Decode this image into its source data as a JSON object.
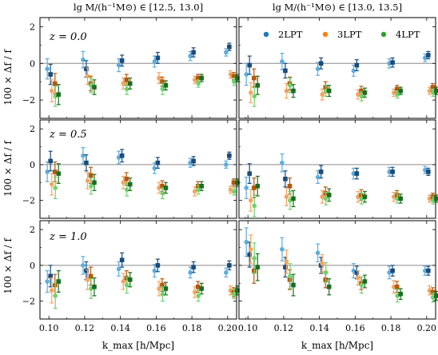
{
  "chart_data": {
    "type": "scatter",
    "layout": "3 rows x 2 columns of error-bar panels, shared x and y axes",
    "column_titles": [
      "lg M/(h⁻¹M⊙) ∈ [12.5, 13.0]",
      "lg M/(h⁻¹M⊙) ∈ [13.0, 13.5]"
    ],
    "row_labels": [
      "z = 0.0",
      "z = 0.5",
      "z = 1.0"
    ],
    "xlabel": "k_max [h/Mpc]",
    "ylabel": "100 × Δf / f",
    "xlim": [
      0.095,
      0.205
    ],
    "ylim": [
      -3,
      2.5
    ],
    "xticks": [
      "0.10",
      "0.12",
      "0.14",
      "0.16",
      "0.18",
      "0.20"
    ],
    "yticks": [
      "−2",
      "0",
      "2"
    ],
    "reference_line_y": 0,
    "grid": false,
    "legend": {
      "entries": [
        "2LPT",
        "3LPT",
        "4LPT"
      ],
      "location": "top-right of upper-right panel"
    },
    "x": [
      0.1,
      0.12,
      0.14,
      0.16,
      0.18,
      0.2
    ],
    "colors": {
      "2LPT": {
        "light": "#5aaee0",
        "dark": "#1b4b7a"
      },
      "3LPT": {
        "light": "#f5a55c",
        "dark": "#b35a0c"
      },
      "4LPT": {
        "light": "#6dd46d",
        "dark": "#1e6b24"
      }
    },
    "panels": [
      {
        "row": 0,
        "col": 0,
        "series": [
          {
            "name": "2LPT",
            "light": {
              "y": [
                -0.3,
                0.2,
                -0.1,
                0.1,
                0.4,
                0.6
              ],
              "err": [
                0.55,
                0.45,
                0.35,
                0.3,
                0.25,
                0.2
              ]
            },
            "dark": {
              "y": [
                -0.6,
                -0.3,
                0.15,
                0.3,
                0.6,
                0.9
              ],
              "err": [
                0.55,
                0.45,
                0.3,
                0.3,
                0.25,
                0.2
              ]
            }
          },
          {
            "name": "3LPT",
            "light": {
              "y": [
                -1.5,
                -0.7,
                -1.1,
                -0.8,
                -0.9,
                -0.6
              ],
              "err": [
                0.6,
                0.45,
                0.3,
                0.3,
                0.2,
                0.2
              ]
            },
            "dark": {
              "y": [
                -1.1,
                -1.1,
                -0.9,
                -1.0,
                -0.8,
                -0.7
              ],
              "err": [
                0.55,
                0.4,
                0.3,
                0.25,
                0.2,
                0.2
              ]
            }
          },
          {
            "name": "4LPT",
            "light": {
              "y": [
                -1.8,
                -1.2,
                -1.4,
                -1.4,
                -1.1,
                -1.0
              ],
              "err": [
                0.55,
                0.4,
                0.3,
                0.3,
                0.2,
                0.2
              ]
            },
            "dark": {
              "y": [
                -1.7,
                -1.3,
                -1.1,
                -1.2,
                -0.8,
                -0.8
              ],
              "err": [
                0.55,
                0.4,
                0.3,
                0.25,
                0.2,
                0.2
              ]
            }
          }
        ]
      },
      {
        "row": 0,
        "col": 1,
        "series": [
          {
            "name": "2LPT",
            "light": {
              "y": [
                -0.6,
                0.1,
                -0.3,
                -0.4,
                0.0,
                0.3
              ],
              "err": [
                0.6,
                0.45,
                0.35,
                0.3,
                0.25,
                0.2
              ]
            },
            "dark": {
              "y": [
                -0.1,
                -0.4,
                0.0,
                -0.1,
                0.05,
                0.45
              ],
              "err": [
                0.5,
                0.4,
                0.3,
                0.3,
                0.25,
                0.2
              ]
            }
          },
          {
            "name": "3LPT",
            "light": {
              "y": [
                -1.6,
                -1.5,
                -1.7,
                -1.7,
                -1.6,
                -1.5
              ],
              "err": [
                0.55,
                0.4,
                0.3,
                0.25,
                0.2,
                0.2
              ]
            },
            "dark": {
              "y": [
                -0.8,
                -1.1,
                -1.3,
                -1.5,
                -1.4,
                -1.3
              ],
              "err": [
                0.5,
                0.35,
                0.3,
                0.25,
                0.2,
                0.2
              ]
            }
          },
          {
            "name": "4LPT",
            "light": {
              "y": [
                -1.8,
                -1.2,
                -1.5,
                -1.8,
                -1.7,
                -1.6
              ],
              "err": [
                0.55,
                0.4,
                0.3,
                0.25,
                0.2,
                0.2
              ]
            },
            "dark": {
              "y": [
                -1.2,
                -1.5,
                -1.5,
                -1.6,
                -1.5,
                -1.5
              ],
              "err": [
                0.5,
                0.35,
                0.3,
                0.25,
                0.2,
                0.2
              ]
            }
          }
        ]
      },
      {
        "row": 1,
        "col": 0,
        "series": [
          {
            "name": "2LPT",
            "light": {
              "y": [
                -0.4,
                0.5,
                0.4,
                -0.2,
                0.1,
                0.0
              ],
              "err": [
                0.55,
                0.45,
                0.35,
                0.3,
                0.25,
                0.2
              ]
            },
            "dark": {
              "y": [
                0.2,
                0.1,
                0.5,
                0.1,
                0.2,
                0.5
              ],
              "err": [
                0.55,
                0.45,
                0.35,
                0.3,
                0.25,
                0.2
              ]
            }
          },
          {
            "name": "3LPT",
            "light": {
              "y": [
                -1.1,
                -0.9,
                -1.0,
                -1.3,
                -1.5,
                -1.4
              ],
              "err": [
                0.6,
                0.45,
                0.35,
                0.3,
                0.25,
                0.2
              ]
            },
            "dark": {
              "y": [
                -0.4,
                -0.6,
                -0.8,
                -1.2,
                -1.2,
                -1.0
              ],
              "err": [
                0.55,
                0.45,
                0.35,
                0.3,
                0.25,
                0.2
              ]
            }
          },
          {
            "name": "4LPT",
            "light": {
              "y": [
                -1.3,
                -1.2,
                -1.4,
                -1.6,
                -1.4,
                -1.5
              ],
              "err": [
                0.6,
                0.45,
                0.35,
                0.3,
                0.25,
                0.2
              ]
            },
            "dark": {
              "y": [
                -0.5,
                -1.0,
                -1.1,
                -1.3,
                -1.2,
                -1.0
              ],
              "err": [
                0.55,
                0.45,
                0.35,
                0.3,
                0.25,
                0.2
              ]
            }
          }
        ]
      },
      {
        "row": 1,
        "col": 1,
        "series": [
          {
            "name": "2LPT",
            "light": {
              "y": [
                -1.3,
                0.1,
                -0.7,
                -0.5,
                -0.4,
                -0.3
              ],
              "err": [
                0.6,
                0.5,
                0.35,
                0.3,
                0.25,
                0.2
              ]
            },
            "dark": {
              "y": [
                -0.5,
                -0.8,
                -0.4,
                -0.5,
                -0.4,
                -0.4
              ],
              "err": [
                0.55,
                0.45,
                0.35,
                0.3,
                0.25,
                0.2
              ]
            }
          },
          {
            "name": "3LPT",
            "light": {
              "y": [
                -2.0,
                -1.8,
                -1.8,
                -1.8,
                -1.8,
                -1.9
              ],
              "err": [
                0.6,
                0.5,
                0.35,
                0.3,
                0.25,
                0.2
              ]
            },
            "dark": {
              "y": [
                -1.3,
                -1.2,
                -1.6,
                -1.7,
                -1.7,
                -1.8
              ],
              "err": [
                0.55,
                0.45,
                0.35,
                0.3,
                0.25,
                0.2
              ]
            }
          },
          {
            "name": "4LPT",
            "light": {
              "y": [
                -2.3,
                -2.0,
                -1.9,
                -1.9,
                -1.9,
                -2.0
              ],
              "err": [
                0.6,
                0.5,
                0.35,
                0.3,
                0.25,
                0.2
              ]
            },
            "dark": {
              "y": [
                -1.2,
                -1.9,
                -1.7,
                -1.8,
                -1.9,
                -1.9
              ],
              "err": [
                0.55,
                0.45,
                0.35,
                0.3,
                0.25,
                0.2
              ]
            }
          }
        ]
      },
      {
        "row": 2,
        "col": 0,
        "series": [
          {
            "name": "2LPT",
            "light": {
              "y": [
                -0.9,
                0.0,
                -0.2,
                -0.3,
                -0.4,
                -0.4
              ],
              "err": [
                0.6,
                0.5,
                0.4,
                0.35,
                0.3,
                0.25
              ]
            },
            "dark": {
              "y": [
                -0.6,
                -0.3,
                0.3,
                0.0,
                -0.1,
                0.0
              ],
              "err": [
                0.6,
                0.5,
                0.4,
                0.35,
                0.3,
                0.25
              ]
            }
          },
          {
            "name": "3LPT",
            "light": {
              "y": [
                -1.4,
                -0.8,
                -0.9,
                -1.3,
                -1.5,
                -1.4
              ],
              "err": [
                0.7,
                0.55,
                0.45,
                0.4,
                0.3,
                0.25
              ]
            },
            "dark": {
              "y": [
                -1.1,
                -0.6,
                -0.7,
                -1.1,
                -1.2,
                -1.5
              ],
              "err": [
                0.6,
                0.5,
                0.4,
                0.35,
                0.3,
                0.25
              ]
            }
          },
          {
            "name": "4LPT",
            "light": {
              "y": [
                -1.7,
                -1.3,
                -1.1,
                -1.6,
                -1.7,
                -1.6
              ],
              "err": [
                0.7,
                0.55,
                0.45,
                0.4,
                0.3,
                0.25
              ]
            },
            "dark": {
              "y": [
                -0.9,
                -1.2,
                -0.8,
                -1.3,
                -1.3,
                -1.4
              ],
              "err": [
                0.6,
                0.5,
                0.4,
                0.35,
                0.3,
                0.25
              ]
            }
          }
        ]
      },
      {
        "row": 2,
        "col": 1,
        "series": [
          {
            "name": "2LPT",
            "light": {
              "y": [
                1.3,
                0.9,
                0.7,
                -0.3,
                -0.4,
                -0.3
              ],
              "err": [
                0.8,
                0.65,
                0.5,
                0.4,
                0.35,
                0.25
              ]
            },
            "dark": {
              "y": [
                0.6,
                -0.1,
                0.0,
                -0.4,
                -0.3,
                -0.3
              ],
              "err": [
                0.7,
                0.55,
                0.45,
                0.35,
                0.3,
                0.25
              ]
            }
          },
          {
            "name": "3LPT",
            "light": {
              "y": [
                0.9,
                0.2,
                0.1,
                -0.7,
                -1.2,
                -1.4
              ],
              "err": [
                0.8,
                0.65,
                0.5,
                0.4,
                0.35,
                0.25
              ]
            },
            "dark": {
              "y": [
                -0.3,
                -0.8,
                -0.8,
                -1.0,
                -1.2,
                -1.5
              ],
              "err": [
                0.7,
                0.55,
                0.45,
                0.35,
                0.3,
                0.25
              ]
            }
          },
          {
            "name": "4LPT",
            "light": {
              "y": [
                0.4,
                -0.6,
                -0.4,
                -1.1,
                -1.7,
                -1.8
              ],
              "err": [
                0.85,
                0.7,
                0.55,
                0.45,
                0.35,
                0.25
              ]
            },
            "dark": {
              "y": [
                -0.1,
                -1.1,
                -1.2,
                -0.9,
                -1.6,
                -1.7
              ],
              "err": [
                0.75,
                0.6,
                0.45,
                0.35,
                0.3,
                0.25
              ]
            }
          }
        ]
      }
    ]
  }
}
